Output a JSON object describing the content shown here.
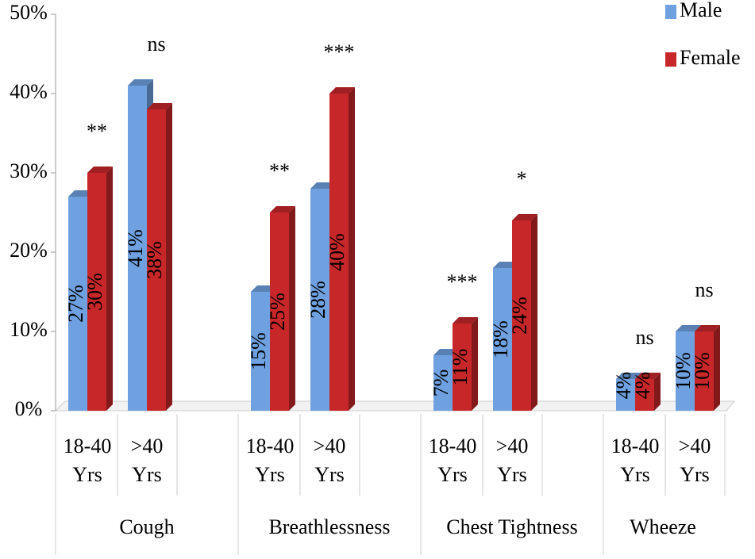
{
  "chart_data": {
    "type": "bar",
    "groups": [
      "Cough",
      "Breathlessness",
      "Chest Tightness",
      "Wheeze"
    ],
    "categories": [
      [
        "18-40",
        "Yrs"
      ],
      [
        ">40",
        "Yrs"
      ],
      [
        "18-40",
        "Yrs"
      ],
      [
        ">40",
        "Yrs"
      ],
      [
        "18-40",
        "Yrs"
      ],
      [
        ">40",
        "Yrs"
      ],
      [
        "18-40",
        "Yrs"
      ],
      [
        ">40",
        "Yrs"
      ]
    ],
    "series": [
      {
        "name": "Male",
        "color": "#6fa1e0",
        "values": [
          27,
          41,
          15,
          28,
          7,
          18,
          4,
          10
        ],
        "value_labels": [
          "27%",
          "41%",
          "15%",
          "28%",
          "7%",
          "18%",
          "4%",
          "10%"
        ]
      },
      {
        "name": "Female",
        "color": "#c8272a",
        "values": [
          30,
          38,
          25,
          40,
          11,
          24,
          4,
          10
        ],
        "value_labels": [
          "30%",
          "38%",
          "25%",
          "40%",
          "11%",
          "24%",
          "4%",
          "10%"
        ]
      }
    ],
    "annotations": [
      "**",
      "ns",
      "**",
      "***",
      "***",
      "*",
      "ns",
      "ns"
    ],
    "ylim": [
      0,
      50
    ],
    "yticks": [
      {
        "value": 0,
        "label": "0%"
      },
      {
        "value": 10,
        "label": "10%"
      },
      {
        "value": 20,
        "label": "20%"
      },
      {
        "value": 30,
        "label": "30%"
      },
      {
        "value": 40,
        "label": "40%"
      },
      {
        "value": 50,
        "label": "50%"
      }
    ],
    "legend": "top-right"
  }
}
